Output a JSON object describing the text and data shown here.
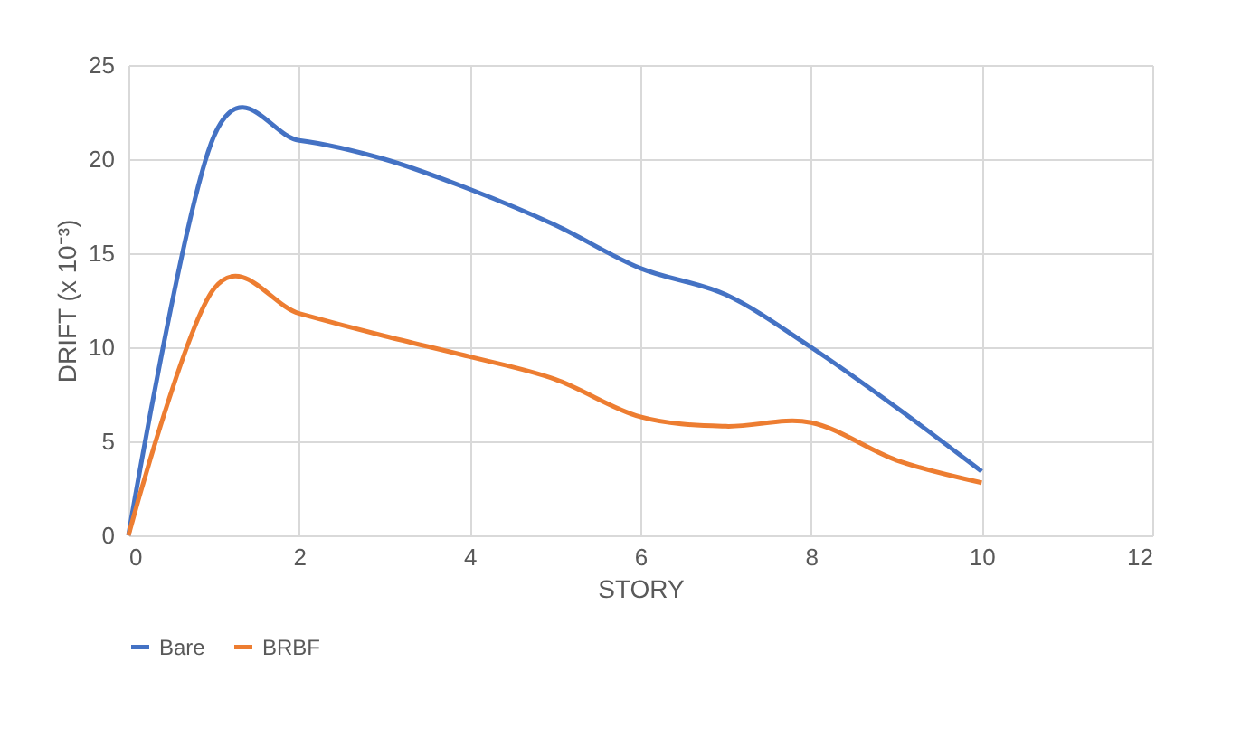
{
  "chart_data": {
    "type": "line",
    "xlabel": "STORY",
    "ylabel": "DRIFT (x 10⁻³)",
    "x": [
      0,
      1,
      2,
      3,
      4,
      5,
      6,
      7,
      8,
      9,
      10
    ],
    "series": [
      {
        "name": "Bare",
        "color": "#4472c4",
        "values": [
          0,
          21.2,
          21.0,
          20.0,
          18.4,
          16.5,
          14.2,
          12.8,
          10.0,
          6.8,
          3.4
        ]
      },
      {
        "name": "BRBF",
        "color": "#ed7d31",
        "values": [
          0,
          13.1,
          11.8,
          10.6,
          9.5,
          8.3,
          6.3,
          5.8,
          6.0,
          4.0,
          2.8
        ]
      }
    ],
    "xlim": [
      0,
      12
    ],
    "xticks": [
      0,
      2,
      4,
      6,
      8,
      10,
      12
    ],
    "ylim": [
      0,
      25
    ],
    "yticks": [
      0,
      5,
      10,
      15,
      20,
      25
    ],
    "grid": true,
    "legend": "bottom",
    "marker": "none",
    "line_style": "solid"
  }
}
